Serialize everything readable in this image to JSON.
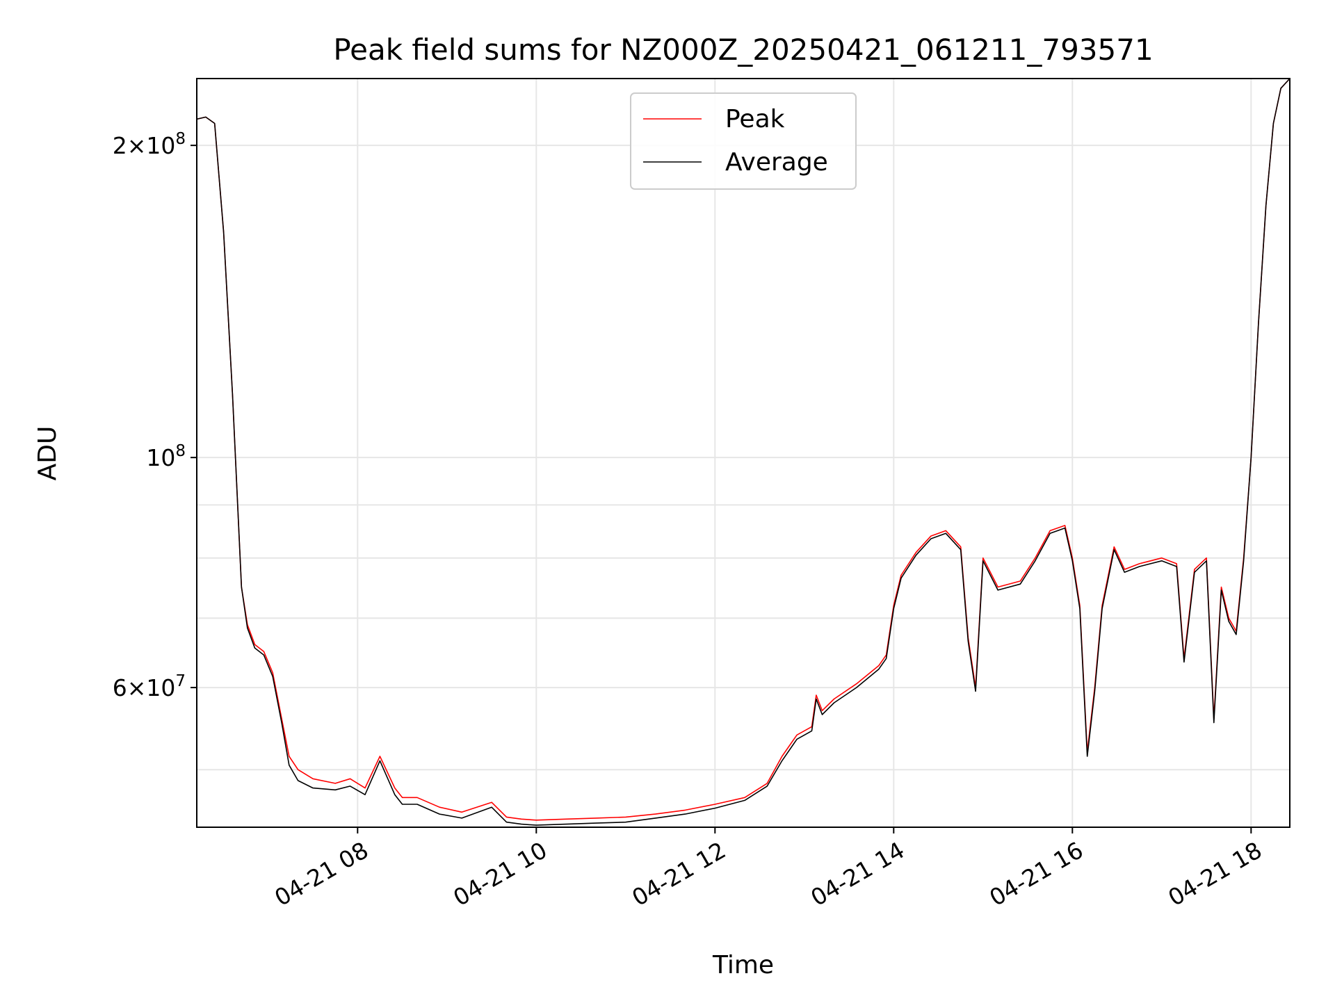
{
  "chart_data": {
    "type": "line",
    "title": "Peak field sums for NZ000Z_20250421_061211_793571",
    "xlabel": "Time",
    "ylabel": "ADU",
    "y_scale": "log",
    "ylim": [
      44000000,
      232000000
    ],
    "xlim": [
      "2025-04-21 06:12",
      "2025-04-21 18:26"
    ],
    "grid": true,
    "legend_position": "top-center",
    "x_ticks": [
      {
        "value": "2025-04-21 08:00",
        "label": "04-21 08"
      },
      {
        "value": "2025-04-21 10:00",
        "label": "04-21 10"
      },
      {
        "value": "2025-04-21 12:00",
        "label": "04-21 12"
      },
      {
        "value": "2025-04-21 14:00",
        "label": "04-21 14"
      },
      {
        "value": "2025-04-21 16:00",
        "label": "04-21 16"
      },
      {
        "value": "2025-04-21 18:00",
        "label": "04-21 18"
      }
    ],
    "y_ticks": [
      {
        "value": 60000000,
        "mantissa": "6",
        "exponent": "7"
      },
      {
        "value": 100000000,
        "mantissa": "",
        "exponent": "8"
      },
      {
        "value": 200000000,
        "mantissa": "2",
        "exponent": "8"
      }
    ],
    "y_minor_gridlines": [
      50000000,
      70000000,
      80000000,
      90000000
    ],
    "series": [
      {
        "name": "Peak",
        "color": "#ff0000",
        "x": [
          "2025-04-21 06:12",
          "2025-04-21 06:18",
          "2025-04-21 06:24",
          "2025-04-21 06:30",
          "2025-04-21 06:36",
          "2025-04-21 06:42",
          "2025-04-21 06:46",
          "2025-04-21 06:51",
          "2025-04-21 06:57",
          "2025-04-21 07:03",
          "2025-04-21 07:09",
          "2025-04-21 07:14",
          "2025-04-21 07:20",
          "2025-04-21 07:30",
          "2025-04-21 07:45",
          "2025-04-21 07:55",
          "2025-04-21 08:05",
          "2025-04-21 08:15",
          "2025-04-21 08:25",
          "2025-04-21 08:30",
          "2025-04-21 08:40",
          "2025-04-21 08:55",
          "2025-04-21 09:10",
          "2025-04-21 09:30",
          "2025-04-21 09:40",
          "2025-04-21 09:50",
          "2025-04-21 10:00",
          "2025-04-21 10:20",
          "2025-04-21 10:40",
          "2025-04-21 11:00",
          "2025-04-21 11:20",
          "2025-04-21 11:40",
          "2025-04-21 12:00",
          "2025-04-21 12:20",
          "2025-04-21 12:35",
          "2025-04-21 12:45",
          "2025-04-21 12:55",
          "2025-04-21 13:05",
          "2025-04-21 13:08",
          "2025-04-21 13:12",
          "2025-04-21 13:20",
          "2025-04-21 13:35",
          "2025-04-21 13:50",
          "2025-04-21 13:55",
          "2025-04-21 14:00",
          "2025-04-21 14:05",
          "2025-04-21 14:15",
          "2025-04-21 14:25",
          "2025-04-21 14:35",
          "2025-04-21 14:45",
          "2025-04-21 14:50",
          "2025-04-21 14:55",
          "2025-04-21 15:00",
          "2025-04-21 15:10",
          "2025-04-21 15:25",
          "2025-04-21 15:35",
          "2025-04-21 15:45",
          "2025-04-21 15:55",
          "2025-04-21 16:00",
          "2025-04-21 16:05",
          "2025-04-21 16:10",
          "2025-04-21 16:15",
          "2025-04-21 16:20",
          "2025-04-21 16:28",
          "2025-04-21 16:35",
          "2025-04-21 16:45",
          "2025-04-21 17:00",
          "2025-04-21 17:10",
          "2025-04-21 17:15",
          "2025-04-21 17:22",
          "2025-04-21 17:30",
          "2025-04-21 17:35",
          "2025-04-21 17:40",
          "2025-04-21 17:45",
          "2025-04-21 17:50",
          "2025-04-21 17:55",
          "2025-04-21 18:00",
          "2025-04-21 18:05",
          "2025-04-21 18:10",
          "2025-04-21 18:15",
          "2025-04-21 18:20",
          "2025-04-21 18:26"
        ],
        "y": [
          212000000,
          213000000,
          210000000,
          165000000,
          115000000,
          75000000,
          69000000,
          66000000,
          65000000,
          62000000,
          56000000,
          51500000,
          50000000,
          49000000,
          48500000,
          49000000,
          48000000,
          51500000,
          48000000,
          47000000,
          47000000,
          46000000,
          45500000,
          46500000,
          45000000,
          44800000,
          44700000,
          44800000,
          44900000,
          45000000,
          45300000,
          45700000,
          46300000,
          47000000,
          48500000,
          51500000,
          54000000,
          55000000,
          59000000,
          57000000,
          58500000,
          60500000,
          63000000,
          64500000,
          72000000,
          77000000,
          81000000,
          84000000,
          85000000,
          82000000,
          67000000,
          60000000,
          80000000,
          75000000,
          76000000,
          80000000,
          85000000,
          86000000,
          80000000,
          72000000,
          52000000,
          60000000,
          72000000,
          82000000,
          78000000,
          79000000,
          80000000,
          79000000,
          64000000,
          78000000,
          80000000,
          56000000,
          75000000,
          70000000,
          68000000,
          80000000,
          100000000,
          135000000,
          175000000,
          210000000,
          227000000,
          232000000
        ]
      },
      {
        "name": "Average",
        "color": "#000000",
        "x": [
          "2025-04-21 06:12",
          "2025-04-21 06:18",
          "2025-04-21 06:24",
          "2025-04-21 06:30",
          "2025-04-21 06:36",
          "2025-04-21 06:42",
          "2025-04-21 06:46",
          "2025-04-21 06:51",
          "2025-04-21 06:57",
          "2025-04-21 07:03",
          "2025-04-21 07:09",
          "2025-04-21 07:14",
          "2025-04-21 07:20",
          "2025-04-21 07:30",
          "2025-04-21 07:45",
          "2025-04-21 07:55",
          "2025-04-21 08:05",
          "2025-04-21 08:15",
          "2025-04-21 08:25",
          "2025-04-21 08:30",
          "2025-04-21 08:40",
          "2025-04-21 08:55",
          "2025-04-21 09:10",
          "2025-04-21 09:30",
          "2025-04-21 09:40",
          "2025-04-21 09:50",
          "2025-04-21 10:00",
          "2025-04-21 10:20",
          "2025-04-21 10:40",
          "2025-04-21 11:00",
          "2025-04-21 11:20",
          "2025-04-21 11:40",
          "2025-04-21 12:00",
          "2025-04-21 12:20",
          "2025-04-21 12:35",
          "2025-04-21 12:45",
          "2025-04-21 12:55",
          "2025-04-21 13:05",
          "2025-04-21 13:08",
          "2025-04-21 13:12",
          "2025-04-21 13:20",
          "2025-04-21 13:35",
          "2025-04-21 13:50",
          "2025-04-21 13:55",
          "2025-04-21 14:00",
          "2025-04-21 14:05",
          "2025-04-21 14:15",
          "2025-04-21 14:25",
          "2025-04-21 14:35",
          "2025-04-21 14:45",
          "2025-04-21 14:50",
          "2025-04-21 14:55",
          "2025-04-21 15:00",
          "2025-04-21 15:10",
          "2025-04-21 15:25",
          "2025-04-21 15:35",
          "2025-04-21 15:45",
          "2025-04-21 15:55",
          "2025-04-21 16:00",
          "2025-04-21 16:05",
          "2025-04-21 16:10",
          "2025-04-21 16:15",
          "2025-04-21 16:20",
          "2025-04-21 16:28",
          "2025-04-21 16:35",
          "2025-04-21 16:45",
          "2025-04-21 17:00",
          "2025-04-21 17:10",
          "2025-04-21 17:15",
          "2025-04-21 17:22",
          "2025-04-21 17:30",
          "2025-04-21 17:35",
          "2025-04-21 17:40",
          "2025-04-21 17:45",
          "2025-04-21 17:50",
          "2025-04-21 17:55",
          "2025-04-21 18:00",
          "2025-04-21 18:05",
          "2025-04-21 18:10",
          "2025-04-21 18:15",
          "2025-04-21 18:20",
          "2025-04-21 18:26"
        ],
        "y": [
          212000000,
          213000000,
          210000000,
          165000000,
          115000000,
          75000000,
          68500000,
          65500000,
          64500000,
          61500000,
          55500000,
          50500000,
          48800000,
          48000000,
          47800000,
          48200000,
          47300000,
          51000000,
          47300000,
          46300000,
          46300000,
          45300000,
          44900000,
          46000000,
          44500000,
          44300000,
          44200000,
          44300000,
          44400000,
          44500000,
          44900000,
          45300000,
          45900000,
          46700000,
          48200000,
          51000000,
          53500000,
          54500000,
          58500000,
          56500000,
          58000000,
          60000000,
          62500000,
          64000000,
          71500000,
          76500000,
          80500000,
          83500000,
          84500000,
          81500000,
          66500000,
          59500000,
          79500000,
          74500000,
          75500000,
          79500000,
          84500000,
          85500000,
          79500000,
          71500000,
          51500000,
          59500000,
          71500000,
          81500000,
          77500000,
          78500000,
          79500000,
          78500000,
          63500000,
          77500000,
          79500000,
          55500000,
          74500000,
          69500000,
          67500000,
          79500000,
          100000000,
          135000000,
          175000000,
          210000000,
          227000000,
          232000000
        ]
      }
    ]
  }
}
